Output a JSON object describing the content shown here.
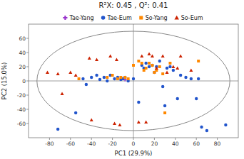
{
  "chart_data": {
    "type": "scatter",
    "title": "R²X: 0.45 , Q²: 0.41",
    "xlabel": "PC1 (29.9%)",
    "ylabel": "PC2 (15.0%)",
    "xlim": [
      -100,
      100
    ],
    "ylim": [
      -80,
      80
    ],
    "xticks": [
      -80,
      -60,
      -40,
      -20,
      0,
      20,
      40,
      60,
      80
    ],
    "yticks": [
      -60,
      -40,
      -20,
      0,
      20,
      40,
      60
    ],
    "grid": false,
    "legend": "top",
    "ellipse": {
      "cx": 0,
      "cy": 0,
      "rx": 92,
      "ry": 70,
      "color": "#888888"
    },
    "series": [
      {
        "name": "Tae-Yang",
        "color": "#9933CC",
        "marker": "plus",
        "x": [
          -8
        ],
        "values": [
          2
        ]
      },
      {
        "name": "Tae-Eum",
        "color": "#2255CC",
        "marker": "circle",
        "x": [
          -72,
          -55,
          -48,
          -45,
          -40,
          -35,
          -32,
          -28,
          -25,
          -22,
          -18,
          -15,
          -12,
          -10,
          -8,
          -5,
          0,
          5,
          8,
          10,
          12,
          15,
          18,
          20,
          22,
          25,
          28,
          30,
          32,
          35,
          38,
          42,
          45,
          50,
          55,
          60,
          62,
          65,
          70,
          88
        ],
        "values": [
          -68,
          -45,
          3,
          -5,
          5,
          8,
          2,
          5,
          0,
          8,
          3,
          5,
          2,
          3,
          5,
          0,
          3,
          -30,
          22,
          18,
          25,
          20,
          22,
          12,
          20,
          28,
          -8,
          -35,
          18,
          20,
          15,
          -25,
          8,
          5,
          3,
          -25,
          3,
          -65,
          -70,
          -62
        ]
      },
      {
        "name": "So-Yang",
        "color": "#FF8800",
        "marker": "square",
        "x": [
          -52,
          -25,
          -20,
          -15,
          -12,
          -8,
          -5,
          0,
          5,
          8,
          10,
          12,
          15,
          18,
          20,
          22,
          25,
          28,
          30,
          35,
          62
        ],
        "values": [
          3,
          5,
          8,
          3,
          5,
          5,
          3,
          22,
          28,
          25,
          15,
          18,
          25,
          22,
          12,
          15,
          20,
          10,
          -45,
          25,
          28
        ]
      },
      {
        "name": "So-Eum",
        "color": "#CC2200",
        "marker": "triangle",
        "x": [
          -82,
          -72,
          -68,
          -60,
          -55,
          -42,
          -40,
          -35,
          -22,
          -18,
          -16,
          -13,
          5,
          8,
          12,
          15,
          18,
          22,
          28,
          32,
          38,
          42,
          45,
          55
        ],
        "values": [
          12,
          10,
          -18,
          12,
          8,
          32,
          -55,
          30,
          35,
          -60,
          30,
          -62,
          -58,
          35,
          -58,
          38,
          35,
          18,
          35,
          12,
          20,
          18,
          35,
          15
        ]
      }
    ]
  }
}
